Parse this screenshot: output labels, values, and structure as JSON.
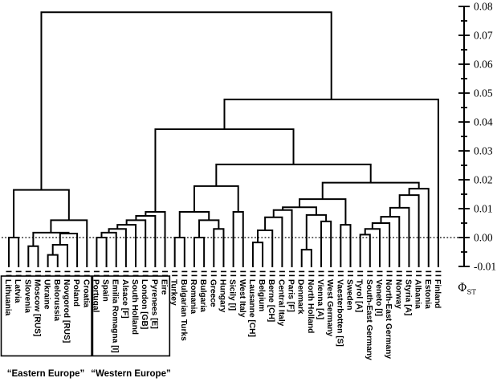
{
  "figure": {
    "axis": {
      "label": "Φ",
      "label_subscript": "ST",
      "tick_labels": [
        "0.08",
        "0.07",
        "0.06",
        "0.05",
        "0.04",
        "0.03",
        "0.02",
        "0.01",
        "0.00",
        "-0.01"
      ],
      "max": 0.08,
      "min": -0.01,
      "tick_step": 0.01,
      "zero_line_dotted": true
    },
    "captions": {
      "eastern": "“Eastern Europe”",
      "western": "“Western Europe”"
    }
  },
  "colors": {
    "line": "#000000",
    "background": "#ffffff"
  },
  "chart_data": {
    "type": "dendrogram",
    "metric_label": "ΦST",
    "orientation": "leaves-bottom",
    "axis": {
      "min": -0.01,
      "max": 0.08,
      "tick_step": 0.01,
      "tick_labels": [
        "0.08",
        "0.07",
        "0.06",
        "0.05",
        "0.04",
        "0.03",
        "0.02",
        "0.01",
        "0.00",
        "-0.01"
      ],
      "zero_reference_line": 0.0
    },
    "leaves": [
      "Lithuania",
      "Latvia",
      "Slovenia",
      "Moscow [RUS]",
      "Ukraine",
      "Belorussia",
      "Novgorod [RUS]",
      "Poland",
      "Croatia",
      "Portugal",
      "Spain",
      "Emilia Romagna [I]",
      "Alsace [F]",
      "South Holland",
      "London [GB]",
      "Pyrenees [E]",
      "Eire",
      "Turkey",
      "Bulgarian Turks",
      "Romania",
      "Bulgaria",
      "Greece",
      "Hungary",
      "Sicily [I]",
      "West Italy",
      "Lausanne [CH]",
      "Belgium",
      "Berne [CH]",
      "Central Italy",
      "Paris [F]",
      "Denmark",
      "North Holland",
      "Vienna [A]",
      "West Germany",
      "Vaesterbotten [S]",
      "Sweden",
      "Tyrol [A]",
      "South-East Germany",
      "Veneto [I]",
      "North-East Germany",
      "Norway",
      "Styria [A]",
      "Albania",
      "Estonia",
      "Finland"
    ],
    "groups": [
      {
        "label": "“Eastern Europe”",
        "leaf_start": 0,
        "leaf_end": 8
      },
      {
        "label": "“Western Europe”",
        "leaf_start": 9,
        "leaf_end": 16
      }
    ],
    "tree": {
      "h": 0.078,
      "c": [
        {
          "h": 0.0165,
          "c": [
            {
              "h": 0.0,
              "c": [
                0,
                1
              ]
            },
            {
              "h": 0.006,
              "c": [
                {
                  "h": 0.0017,
                  "c": [
                    {
                      "h": -0.003,
                      "c": [
                        2,
                        3
                      ]
                    },
                    {
                      "h": 0.0014,
                      "c": [
                        {
                          "h": -0.0025,
                          "c": [
                            {
                              "h": -0.006,
                              "c": [
                                4,
                                5
                              ]
                            },
                            6
                          ]
                        },
                        7
                      ]
                    }
                  ]
                },
                8
              ]
            }
          ]
        },
        {
          "h": 0.0478,
          "c": [
            {
              "h": 0.0375,
              "c": [
                {
                  "h": 0.0089,
                  "c": [
                    {
                      "h": 0.0075,
                      "c": [
                        {
                          "h": 0.006,
                          "c": [
                            {
                              "h": 0.0044,
                              "c": [
                                {
                                  "h": 0.003,
                                  "c": [
                                    {
                                      "h": 0.0017,
                                      "c": [
                                        {
                                          "h": 0.0,
                                          "c": [
                                            9,
                                            10
                                          ]
                                        },
                                        11
                                      ]
                                    },
                                    12
                                  ]
                                },
                                13
                              ]
                            },
                            14
                          ]
                        },
                        15
                      ]
                    },
                    16
                  ]
                },
                {
                  "h": 0.0253,
                  "c": [
                    {
                      "h": 0.0178,
                      "c": [
                        {
                          "h": 0.0089,
                          "c": [
                            {
                              "h": 0.0,
                              "c": [
                                17,
                                18
                              ]
                            },
                            {
                              "h": 0.006,
                              "c": [
                                {
                                  "h": 0.0,
                                  "c": [
                                    19,
                                    20
                                  ]
                                },
                                {
                                  "h": 0.003,
                                  "c": [
                                    21,
                                    22
                                  ]
                                }
                              ]
                            }
                          ]
                        },
                        {
                          "h": 0.0089,
                          "c": [
                            23,
                            24
                          ]
                        }
                      ]
                    },
                    {
                      "h": 0.019,
                      "c": [
                        {
                          "h": 0.0133,
                          "c": [
                            {
                              "h": 0.0105,
                              "c": [
                                {
                                  "h": 0.0095,
                                  "c": [
                                    {
                                      "h": 0.007,
                                      "c": [
                                        {
                                          "h": 0.0025,
                                          "c": [
                                            {
                                              "h": -0.0017,
                                              "c": [
                                                25,
                                                26
                                              ]
                                            },
                                            27
                                          ]
                                        },
                                        28
                                      ]
                                    },
                                    29
                                  ]
                                },
                                {
                                  "h": 0.0078,
                                  "c": [
                                    {
                                      "h": -0.0042,
                                      "c": [
                                        30,
                                        31
                                      ]
                                    },
                                    {
                                      "h": 0.0056,
                                      "c": [
                                        32,
                                        33
                                      ]
                                    }
                                  ]
                                }
                              ]
                            },
                            {
                              "h": 0.0044,
                              "c": [
                                34,
                                35
                              ]
                            }
                          ]
                        },
                        {
                          "h": 0.0169,
                          "c": [
                            {
                              "h": 0.0147,
                              "c": [
                                {
                                  "h": 0.0103,
                                  "c": [
                                    {
                                      "h": 0.0072,
                                      "c": [
                                        {
                                          "h": 0.005,
                                          "c": [
                                            {
                                              "h": 0.003,
                                              "c": [
                                                {
                                                  "h": 0.001,
                                                  "c": [
                                                    36,
                                                    37
                                                  ]
                                                },
                                                38
                                              ]
                                            },
                                            39
                                          ]
                                        },
                                        40
                                      ]
                                    },
                                    41
                                  ]
                                },
                                42
                              ]
                            },
                            43
                          ]
                        }
                      ]
                    }
                  ]
                }
              ]
            },
            44
          ]
        }
      ]
    }
  }
}
